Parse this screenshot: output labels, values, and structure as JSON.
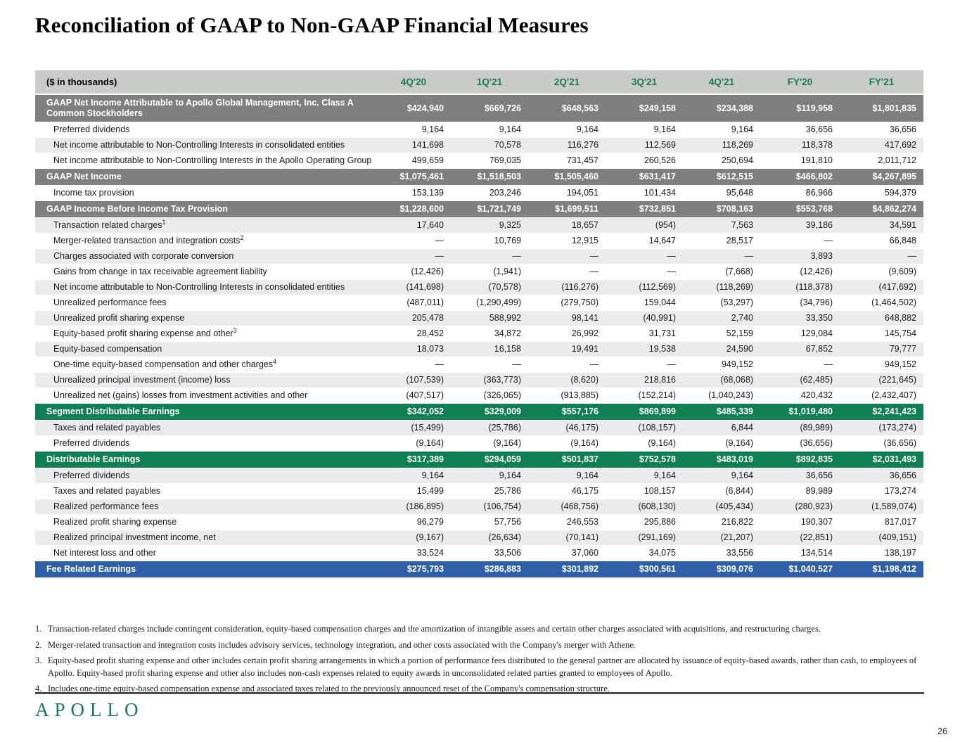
{
  "title": "Reconciliation of GAAP to Non-GAAP Financial Measures",
  "colors": {
    "section_gray": "#7F7F7F",
    "section_green": "#108054",
    "section_blue": "#2F5FA6",
    "header_row_bg": "#C9CBC8",
    "header_text_green": "#1A7A52",
    "alt_row_gray": "#EBEBEB",
    "logo_green": "#1A7A52"
  },
  "table": {
    "unit_label": "($ in thousands)",
    "columns": [
      "4Q'20",
      "1Q'21",
      "2Q'21",
      "3Q'21",
      "4Q'21",
      "FY'20",
      "FY'21"
    ],
    "rows": [
      {
        "style": "section-gray",
        "label": "GAAP Net Income Attributable to Apollo Global Management, Inc. Class A Common Stockholders",
        "values": [
          "$424,940",
          "$669,726",
          "$648,563",
          "$249,158",
          "$234,388",
          "$119,958",
          "$1,801,835"
        ]
      },
      {
        "style": "data",
        "shade": "white",
        "label": "Preferred dividends",
        "values": [
          "9,164",
          "9,164",
          "9,164",
          "9,164",
          "9,164",
          "36,656",
          "36,656"
        ]
      },
      {
        "style": "data",
        "shade": "gray",
        "label": "Net income attributable to Non-Controlling Interests in consolidated entities",
        "values": [
          "141,698",
          "70,578",
          "116,276",
          "112,569",
          "118,269",
          "118,378",
          "417,692"
        ]
      },
      {
        "style": "data",
        "shade": "white",
        "label": "Net income attributable to Non-Controlling Interests in the Apollo Operating Group",
        "values": [
          "499,659",
          "769,035",
          "731,457",
          "260,526",
          "250,694",
          "191,810",
          "2,011,712"
        ]
      },
      {
        "style": "section-gray",
        "label": "GAAP Net Income",
        "values": [
          "$1,075,461",
          "$1,518,503",
          "$1,505,460",
          "$631,417",
          "$612,515",
          "$466,802",
          "$4,267,895"
        ]
      },
      {
        "style": "data",
        "shade": "white",
        "label": "Income tax provision",
        "values": [
          "153,139",
          "203,246",
          "194,051",
          "101,434",
          "95,648",
          "86,966",
          "594,379"
        ]
      },
      {
        "style": "section-gray",
        "label": "GAAP Income Before Income Tax Provision",
        "values": [
          "$1,228,600",
          "$1,721,749",
          "$1,699,511",
          "$732,851",
          "$708,163",
          "$553,768",
          "$4,862,274"
        ]
      },
      {
        "style": "data",
        "shade": "gray",
        "label": "Transaction related charges",
        "sup": "1",
        "values": [
          "17,640",
          "9,325",
          "18,657",
          "(954)",
          "7,563",
          "39,186",
          "34,591"
        ]
      },
      {
        "style": "data",
        "shade": "white",
        "label": "Merger-related transaction and integration costs",
        "sup": "2",
        "values": [
          "—",
          "10,769",
          "12,915",
          "14,647",
          "28,517",
          "—",
          "66,848"
        ]
      },
      {
        "style": "data",
        "shade": "gray",
        "label": "Charges associated with corporate conversion",
        "values": [
          "—",
          "—",
          "—",
          "—",
          "—",
          "3,893",
          "—"
        ]
      },
      {
        "style": "data",
        "shade": "white",
        "label": "Gains from change in tax receivable agreement liability",
        "values": [
          "(12,426)",
          "(1,941)",
          "—",
          "—",
          "(7,668)",
          "(12,426)",
          "(9,609)"
        ]
      },
      {
        "style": "data",
        "shade": "gray",
        "label": "Net income attributable to Non-Controlling Interests in consolidated entities",
        "values": [
          "(141,698)",
          "(70,578)",
          "(116,276)",
          "(112,569)",
          "(118,269)",
          "(118,378)",
          "(417,692)"
        ]
      },
      {
        "style": "data",
        "shade": "white",
        "label": "Unrealized performance fees",
        "values": [
          "(487,011)",
          "(1,290,499)",
          "(279,750)",
          "159,044",
          "(53,297)",
          "(34,796)",
          "(1,464,502)"
        ]
      },
      {
        "style": "data",
        "shade": "gray",
        "label": "Unrealized profit sharing expense",
        "values": [
          "205,478",
          "588,992",
          "98,141",
          "(40,991)",
          "2,740",
          "33,350",
          "648,882"
        ]
      },
      {
        "style": "data",
        "shade": "white",
        "label": "Equity-based profit sharing expense and other",
        "sup": "3",
        "values": [
          "28,452",
          "34,872",
          "26,992",
          "31,731",
          "52,159",
          "129,084",
          "145,754"
        ]
      },
      {
        "style": "data",
        "shade": "gray",
        "label": "Equity-based compensation",
        "values": [
          "18,073",
          "16,158",
          "19,491",
          "19,538",
          "24,590",
          "67,852",
          "79,777"
        ]
      },
      {
        "style": "data",
        "shade": "white",
        "label": "One-time equity-based compensation and other charges",
        "sup": "4",
        "values": [
          "—",
          "—",
          "—",
          "—",
          "949,152",
          "—",
          "949,152"
        ]
      },
      {
        "style": "data",
        "shade": "gray",
        "label": "Unrealized principal investment (income) loss",
        "values": [
          "(107,539)",
          "(363,773)",
          "(8,620)",
          "218,816",
          "(68,068)",
          "(62,485)",
          "(221,645)"
        ]
      },
      {
        "style": "data",
        "shade": "white",
        "label": "Unrealized net (gains) losses from investment activities and other",
        "values": [
          "(407,517)",
          "(326,065)",
          "(913,885)",
          "(152,214)",
          "(1,040,243)",
          "420,432",
          "(2,432,407)"
        ]
      },
      {
        "style": "section-green",
        "label": "Segment Distributable Earnings",
        "values": [
          "$342,052",
          "$329,009",
          "$557,176",
          "$869,899",
          "$485,339",
          "$1,019,480",
          "$2,241,423"
        ]
      },
      {
        "style": "data",
        "shade": "gray",
        "label": "Taxes and related payables",
        "values": [
          "(15,499)",
          "(25,786)",
          "(46,175)",
          "(108,157)",
          "6,844",
          "(89,989)",
          "(173,274)"
        ]
      },
      {
        "style": "data",
        "shade": "white",
        "label": "Preferred dividends",
        "values": [
          "(9,164)",
          "(9,164)",
          "(9,164)",
          "(9,164)",
          "(9,164)",
          "(36,656)",
          "(36,656)"
        ]
      },
      {
        "style": "section-green",
        "label": "Distributable Earnings",
        "values": [
          "$317,389",
          "$294,059",
          "$501,837",
          "$752,578",
          "$483,019",
          "$892,835",
          "$2,031,493"
        ]
      },
      {
        "style": "data",
        "shade": "gray",
        "label": "Preferred dividends",
        "values": [
          "9,164",
          "9,164",
          "9,164",
          "9,164",
          "9,164",
          "36,656",
          "36,656"
        ]
      },
      {
        "style": "data",
        "shade": "white",
        "label": "Taxes and related payables",
        "values": [
          "15,499",
          "25,786",
          "46,175",
          "108,157",
          "(6,844)",
          "89,989",
          "173,274"
        ]
      },
      {
        "style": "data",
        "shade": "gray",
        "label": "Realized performance fees",
        "values": [
          "(186,895)",
          "(106,754)",
          "(468,756)",
          "(608,130)",
          "(405,434)",
          "(280,923)",
          "(1,589,074)"
        ]
      },
      {
        "style": "data",
        "shade": "white",
        "label": "Realized profit sharing expense",
        "values": [
          "96,279",
          "57,756",
          "246,553",
          "295,886",
          "216,822",
          "190,307",
          "817,017"
        ]
      },
      {
        "style": "data",
        "shade": "gray",
        "label": "Realized principal investment income, net",
        "values": [
          "(9,167)",
          "(26,634)",
          "(70,141)",
          "(291,169)",
          "(21,207)",
          "(22,851)",
          "(409,151)"
        ]
      },
      {
        "style": "data",
        "shade": "white",
        "label": "Net interest loss and other",
        "values": [
          "33,524",
          "33,506",
          "37,060",
          "34,075",
          "33,556",
          "134,514",
          "138,197"
        ]
      },
      {
        "style": "section-blue",
        "label": "Fee Related Earnings",
        "values": [
          "$275,793",
          "$286,883",
          "$301,892",
          "$300,561",
          "$309,076",
          "$1,040,527",
          "$1,198,412"
        ]
      }
    ]
  },
  "footnotes": [
    {
      "num": "1.",
      "text": "Transaction-related charges include contingent consideration, equity-based compensation charges and the amortization of intangible assets and certain other charges associated with acquisitions, and restructuring charges."
    },
    {
      "num": "2.",
      "text": "Merger-related transaction and integration costs includes advisory services, technology integration, and other costs associated with the Company's merger with Athene."
    },
    {
      "num": "3.",
      "text": "Equity-based profit sharing expense and other includes certain profit sharing arrangements in which a portion of performance fees distributed to the general partner are allocated by issuance of equity-based awards, rather than cash, to employees of Apollo. Equity-based profit sharing expense and other also includes non-cash expenses related to equity awards in unconsolidated related parties granted to employees of Apollo."
    },
    {
      "num": "4.",
      "text": "Includes one-time equity-based compensation expense and associated taxes related to the previously announced reset of the Company's compensation structure."
    }
  ],
  "footer": {
    "logo": "APOLLO",
    "page_number": "26"
  }
}
